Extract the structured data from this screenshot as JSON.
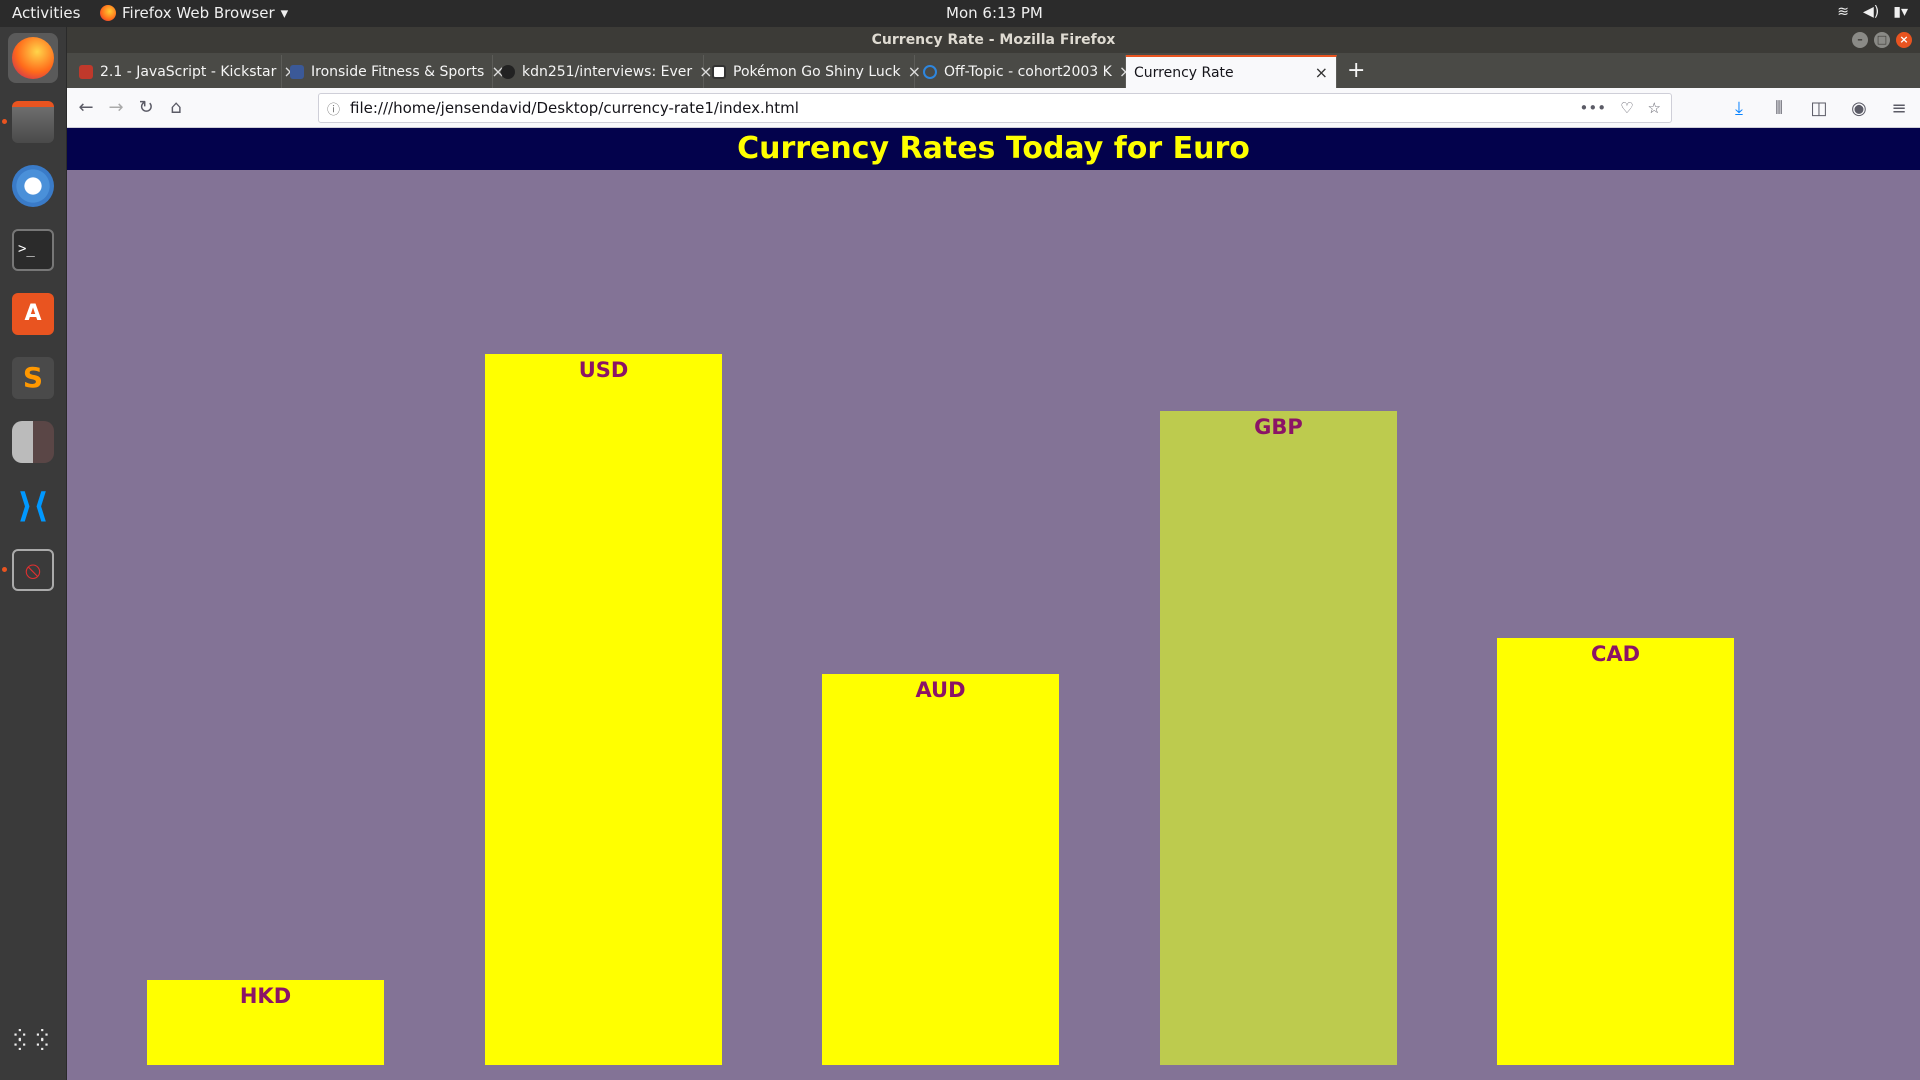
{
  "topbar": {
    "activities": "Activities",
    "app_name": "Firefox Web Browser",
    "clock": "Mon  6:13 PM"
  },
  "dock": {
    "items": [
      {
        "name": "firefox",
        "color": "#ff6a1a"
      },
      {
        "name": "files",
        "color": "#8a8a8a"
      },
      {
        "name": "chromium",
        "color": "#4a90d9"
      },
      {
        "name": "terminal",
        "color": "#2b2b2b"
      },
      {
        "name": "software-center",
        "color": "#e95420"
      },
      {
        "name": "sublime-text",
        "color": "#ff9800"
      },
      {
        "name": "app-generic",
        "color": "#6b5a5a"
      },
      {
        "name": "vscode",
        "color": "#0078d7"
      },
      {
        "name": "blocked-app",
        "color": "#c0392b"
      }
    ]
  },
  "window": {
    "title": "Currency Rate - Mozilla Firefox"
  },
  "tabs": [
    {
      "label": "2.1 - JavaScript - Kickstar",
      "favicon_color": "#c0392b"
    },
    {
      "label": "Ironside Fitness & Sports",
      "favicon_color": "#3b5998"
    },
    {
      "label": "kdn251/interviews: Ever",
      "favicon_color": "#222222"
    },
    {
      "label": "Pokémon Go Shiny Luck",
      "favicon_color": "#333333"
    },
    {
      "label": "Off-Topic - cohort2003 K",
      "favicon_color": "#2e86de"
    },
    {
      "label": "Currency Rate",
      "favicon_color": "#ffffff"
    }
  ],
  "nav": {
    "url": "file:///home/jensendavid/Desktop/currency-rate1/index.html"
  },
  "page": {
    "heading": "Currency Rates Today for Euro",
    "bg_color": "#837396",
    "banner_color": "#03024c",
    "bar_color": "#ffff00",
    "bar_alt_color": "#bdcb4e",
    "label_color": "#8b1466"
  },
  "chart_data": {
    "type": "bar",
    "title": "Currency Rates Today for Euro",
    "categories": [
      "HKD",
      "USD",
      "AUD",
      "GBP",
      "CAD"
    ],
    "values": [
      0.12,
      1.0,
      0.55,
      0.92,
      0.6
    ],
    "ylim": [
      0,
      1.1
    ],
    "grid": false,
    "legend": "none"
  }
}
